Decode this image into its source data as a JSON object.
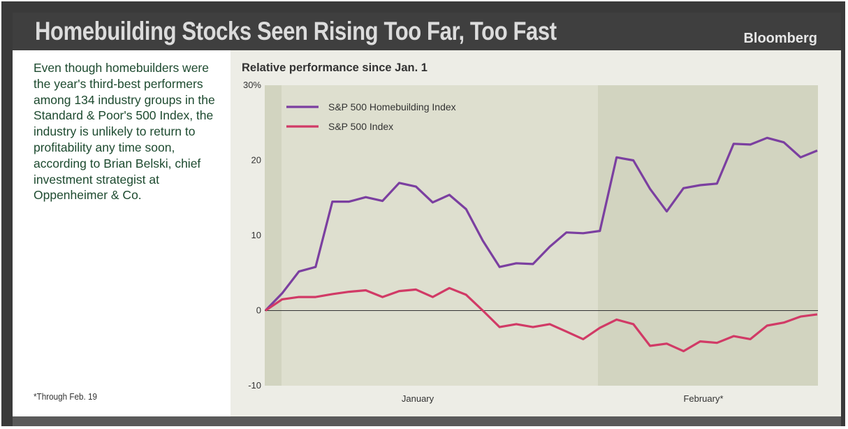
{
  "header": {
    "title": "Homebuilding Stocks Seen Rising Too Far, Too Fast",
    "brand": "Bloomberg"
  },
  "sidebar": {
    "description": "Even though homebuilders were the year's third-best performers among 134 industry groups in the Standard & Poor's 500 Index, the industry is unlikely to return to profitability any time soon, according to Brian Belski, chief investment strategist at Oppenheimer & Co.",
    "footnote": "*Through Feb. 19"
  },
  "colors": {
    "homebuilding": "#7b3fa0",
    "sp500": "#d13a66",
    "plot_bg": "#dedfcf",
    "plot_bg_alt": "#d2d4c0"
  },
  "chart_data": {
    "type": "line",
    "title": "Relative performance since Jan. 1",
    "xlabel": "",
    "ylabel": "",
    "ylim": [
      -10,
      30
    ],
    "yticks": [
      {
        "value": 30,
        "label": "30%"
      },
      {
        "value": 20,
        "label": "20"
      },
      {
        "value": 10,
        "label": "10"
      },
      {
        "value": 0,
        "label": "0"
      },
      {
        "value": -10,
        "label": "-10"
      }
    ],
    "month_labels": [
      "January",
      "February*"
    ],
    "x_points": 34,
    "series": [
      {
        "name": "S&P 500 Homebuilding Index",
        "color": "#7b3fa0",
        "values": [
          0,
          2.3,
          5.2,
          5.8,
          14.5,
          14.5,
          15.1,
          14.6,
          17.0,
          16.5,
          14.4,
          15.4,
          13.5,
          9.3,
          5.8,
          6.3,
          6.2,
          8.5,
          10.4,
          10.3,
          10.6,
          20.4,
          20.0,
          16.2,
          13.2,
          16.3,
          16.7,
          16.9,
          22.2,
          22.1,
          23.0,
          22.4,
          20.4,
          21.3
        ]
      },
      {
        "name": "S&P 500 Index",
        "color": "#d13a66",
        "values": [
          0,
          1.5,
          1.8,
          1.8,
          2.2,
          2.5,
          2.7,
          1.8,
          2.6,
          2.8,
          1.8,
          3.0,
          2.1,
          0.0,
          -2.2,
          -1.8,
          -2.2,
          -1.8,
          -2.8,
          -3.8,
          -2.3,
          -1.2,
          -1.8,
          -4.7,
          -4.4,
          -5.4,
          -4.1,
          -4.3,
          -3.4,
          -3.8,
          -2.0,
          -1.6,
          -0.8,
          -0.5
        ]
      }
    ],
    "grid": false,
    "legend": "top-left"
  }
}
